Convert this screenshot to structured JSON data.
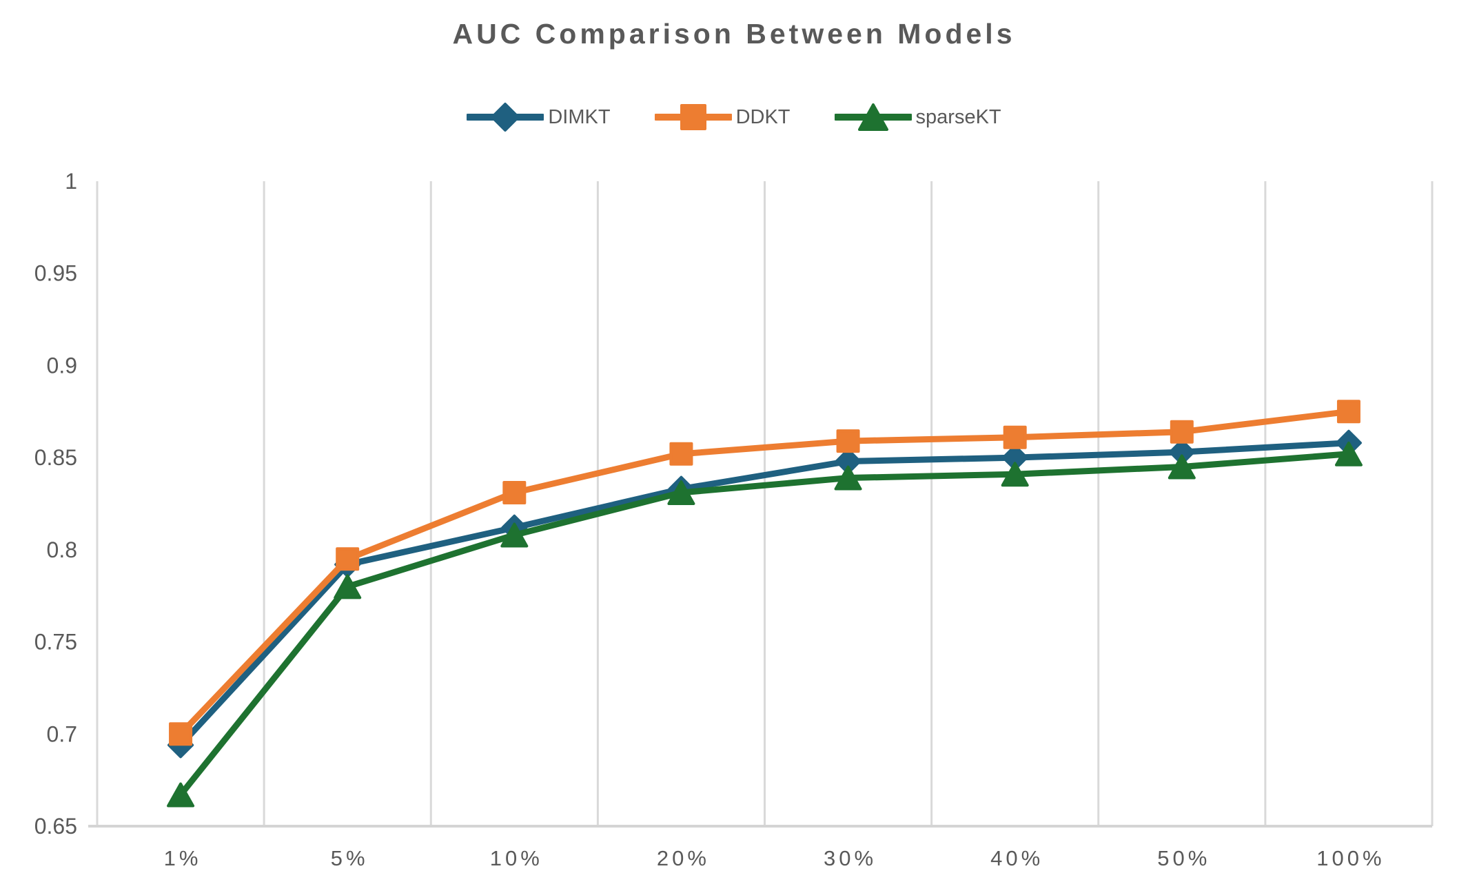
{
  "chart_data": {
    "type": "line",
    "title": "AUC Comparison Between Models",
    "categories": [
      "1%",
      "5%",
      "10%",
      "20%",
      "30%",
      "40%",
      "50%",
      "100%"
    ],
    "series": [
      {
        "name": "DIMKT",
        "marker": "diamond",
        "color": "#1F6080",
        "values": [
          0.694,
          0.792,
          0.812,
          0.833,
          0.848,
          0.85,
          0.853,
          0.858
        ]
      },
      {
        "name": "DDKT",
        "marker": "square",
        "color": "#ED7D31",
        "values": [
          0.7,
          0.795,
          0.831,
          0.852,
          0.859,
          0.861,
          0.864,
          0.875
        ]
      },
      {
        "name": "sparseKT",
        "marker": "triangle",
        "color": "#1E7230",
        "values": [
          0.667,
          0.78,
          0.808,
          0.831,
          0.839,
          0.841,
          0.845,
          0.852
        ]
      }
    ],
    "ylim": [
      0.65,
      1.0
    ],
    "ytick_step": 0.05,
    "yticks": [
      "1",
      "0.95",
      "0.9",
      "0.85",
      "0.8",
      "0.75",
      "0.7",
      "0.65"
    ],
    "xlabel": "",
    "ylabel": "",
    "grid": "vertical-only",
    "legend_position": "top-center",
    "colors": {
      "grid": "#D9D9D9",
      "axis": "#D4D4D4",
      "text": "#595959",
      "title": "#595959"
    }
  }
}
